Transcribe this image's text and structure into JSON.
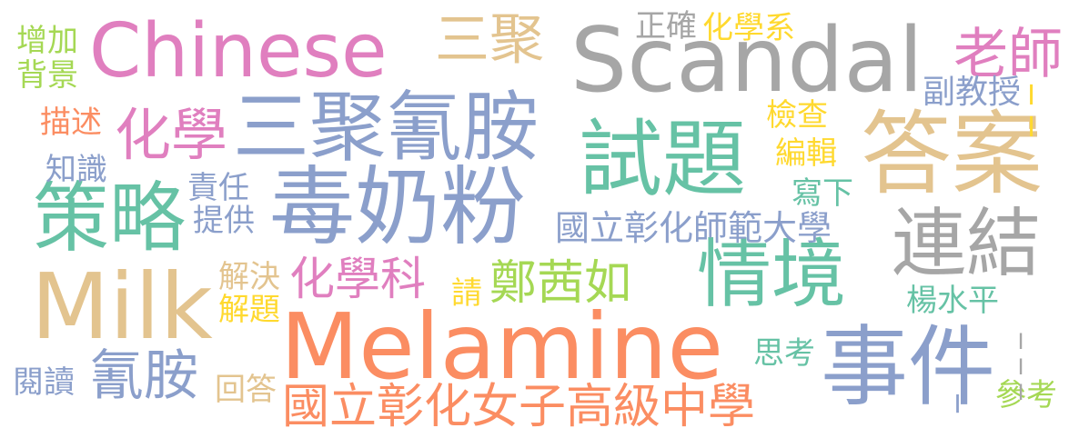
{
  "palette": {
    "pink": "#e07fbf",
    "gray": "#a6a6a6",
    "tan": "#e3c48f",
    "blue": "#8b9fcb",
    "green": "#66c2a5",
    "orange": "#fb8d62",
    "lime": "#a5d854",
    "yellow": "#ffd92f"
  },
  "words": [
    {
      "id": "chinese",
      "text": "Chinese",
      "color": "pink"
    },
    {
      "id": "scandal",
      "text": "Scandal",
      "color": "gray"
    },
    {
      "id": "melamine",
      "text": "Melamine",
      "color": "orange"
    },
    {
      "id": "milk",
      "text": "Milk",
      "color": "tan"
    },
    {
      "id": "du-nai-fen",
      "text": "毒奶粉",
      "color": "blue"
    },
    {
      "id": "san-ju-qing-an",
      "text": "三聚氰胺",
      "color": "blue"
    },
    {
      "id": "shi-ti",
      "text": "試題",
      "color": "green"
    },
    {
      "id": "da-an",
      "text": "答案",
      "color": "tan"
    },
    {
      "id": "ce-lue",
      "text": "策略",
      "color": "green"
    },
    {
      "id": "shi-jian",
      "text": "事件",
      "color": "blue"
    },
    {
      "id": "lian-jie",
      "text": "連結",
      "color": "gray"
    },
    {
      "id": "qing-jing",
      "text": "情境",
      "color": "green"
    },
    {
      "id": "san-ju",
      "text": "三聚",
      "color": "tan"
    },
    {
      "id": "hua-xue",
      "text": "化學",
      "color": "pink"
    },
    {
      "id": "lao-shi",
      "text": "老師",
      "color": "pink"
    },
    {
      "id": "qing-an",
      "text": "氰胺",
      "color": "blue"
    },
    {
      "id": "hua-xue-ke",
      "text": "化學科",
      "color": "pink"
    },
    {
      "id": "zheng-qian-ru",
      "text": "鄭茜如",
      "color": "lime"
    },
    {
      "id": "chenghua-girls-school",
      "text": "國立彰化女子高級中學",
      "color": "orange"
    },
    {
      "id": "changhua-normal-univ",
      "text": "國立彰化師範大學",
      "color": "blue"
    },
    {
      "id": "zheng-que",
      "text": "正確",
      "color": "gray"
    },
    {
      "id": "hua-xue-xi",
      "text": "化學系",
      "color": "yellow"
    },
    {
      "id": "fu-jiao-shou",
      "text": "副教授",
      "color": "blue"
    },
    {
      "id": "zeng-jia",
      "text": "增加",
      "color": "lime"
    },
    {
      "id": "bei-jing",
      "text": "背景",
      "color": "lime"
    },
    {
      "id": "miao-shu",
      "text": "描述",
      "color": "orange"
    },
    {
      "id": "zhi-shi",
      "text": "知識",
      "color": "blue"
    },
    {
      "id": "ze-ren",
      "text": "責任",
      "color": "blue"
    },
    {
      "id": "ti-gong",
      "text": "提供",
      "color": "blue"
    },
    {
      "id": "jian-cha",
      "text": "檢查",
      "color": "yellow"
    },
    {
      "id": "bian-ji",
      "text": "編輯",
      "color": "yellow"
    },
    {
      "id": "xie-xia",
      "text": "寫下",
      "color": "green"
    },
    {
      "id": "jie-jue",
      "text": "解決",
      "color": "tan"
    },
    {
      "id": "jie-ti",
      "text": "解題",
      "color": "yellow"
    },
    {
      "id": "qing",
      "text": "請",
      "color": "yellow"
    },
    {
      "id": "yang-shui-ping",
      "text": "楊水平",
      "color": "green"
    },
    {
      "id": "si-kao",
      "text": "思考",
      "color": "green"
    },
    {
      "id": "yue-du",
      "text": "閱讀",
      "color": "blue"
    },
    {
      "id": "hui-da",
      "text": "回答",
      "color": "tan"
    },
    {
      "id": "can-kao",
      "text": "參考",
      "color": "lime"
    },
    {
      "id": "roman-ii",
      "text": "II",
      "color": "yellow"
    },
    {
      "id": "roman-iii",
      "text": "III",
      "color": "gray"
    },
    {
      "id": "roman-i",
      "text": "I",
      "color": "blue"
    }
  ]
}
